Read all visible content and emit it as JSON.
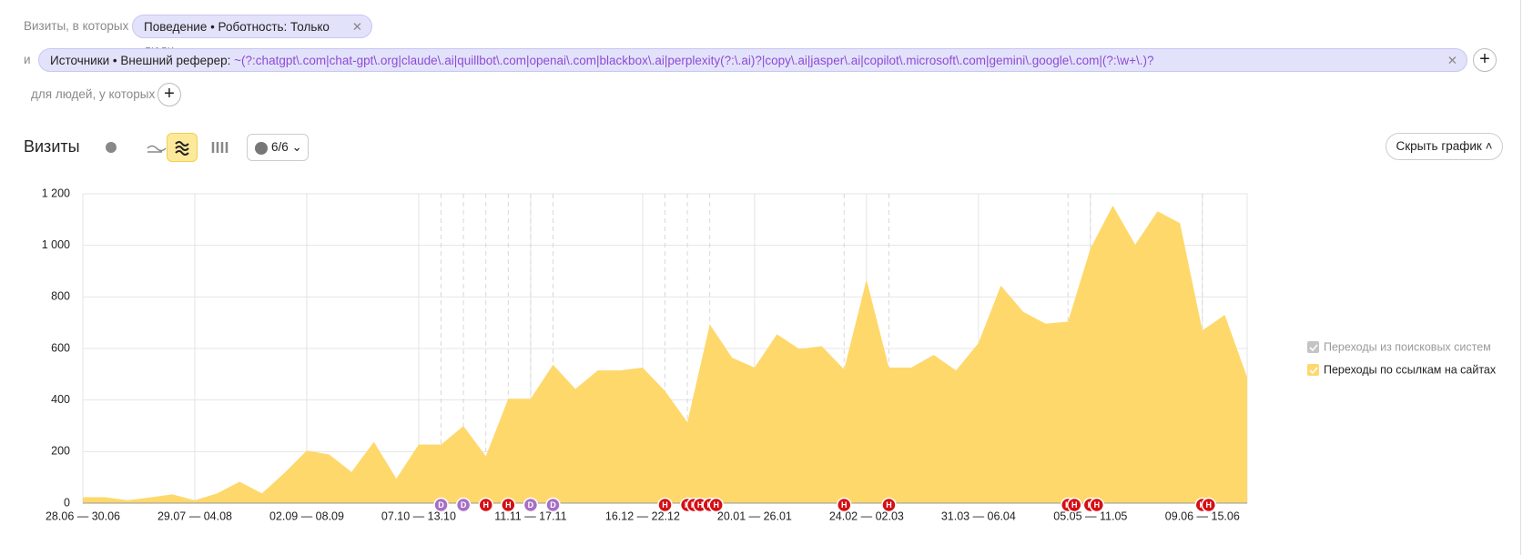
{
  "ui": {
    "filter_prefix": "Визиты, в которых",
    "filter1": "Поведение • Роботность: Только люди",
    "and": "и",
    "filter2_label": "Источники • Внешний реферер:",
    "filter2_value": "~(?:chatgpt\\.com|chat-gpt\\.org|claude\\.ai|quillbot\\.com|openai\\.com|blackbox\\.ai|perplexity(?:\\.ai)?|copy\\.ai|jasper\\.ai|copilot\\.microsoft\\.com|gemini\\.google\\.com|(?:\\w+\\.)?mistral\\.ai|deepseek\\.com|edgepilot|edgeservices|ni…",
    "people_prefix": "для людей, у которых",
    "report_title": "Визиты",
    "notes_count": "6/6",
    "hide_chart": "Скрыть график"
  },
  "chart_data": {
    "type": "area",
    "categories": [
      "28.06 — 30.06",
      null,
      null,
      null,
      null,
      "29.07 — 04.08",
      null,
      null,
      null,
      null,
      "02.09 — 08.09",
      null,
      null,
      null,
      null,
      "07.10 — 13.10",
      null,
      null,
      null,
      null,
      "11.11 — 17.11",
      null,
      null,
      null,
      null,
      "16.12 — 22.12",
      null,
      null,
      null,
      null,
      "20.01 — 26.01",
      null,
      null,
      null,
      null,
      "24.02 — 02.03",
      null,
      null,
      null,
      null,
      "31.03 — 06.04",
      null,
      null,
      null,
      null,
      "05.05 — 11.05",
      null,
      null,
      null,
      null,
      "09.06 — 15.06",
      null,
      null
    ],
    "series": [
      {
        "name": "Переходы по ссылкам на сайтах",
        "color": "#fed86b",
        "values": [
          23,
          23,
          11,
          22,
          34,
          11,
          38,
          83,
          38,
          117,
          204,
          189,
          121,
          238,
          95,
          227,
          227,
          299,
          182,
          405,
          405,
          537,
          443,
          515,
          515,
          526,
          435,
          314,
          693,
          564,
          526,
          655,
          598,
          609,
          519,
          867,
          526,
          526,
          575,
          515,
          621,
          844,
          742,
          696,
          704,
          988,
          1154,
          1003,
          1132,
          1086,
          670,
          730,
          488
        ]
      }
    ],
    "inactive_series": [
      {
        "name": "Переходы из поисковых систем",
        "color": "#c4c4c4"
      }
    ],
    "ylim": [
      0,
      1200
    ],
    "yticks": [
      0,
      200,
      400,
      600,
      800,
      {
        "value": 1000,
        "label": "1 000"
      },
      {
        "value": 1200,
        "label": "1 200"
      }
    ],
    "grid": true,
    "annotations": [
      {
        "label": "D",
        "category": 16
      },
      {
        "label": "D",
        "category": 17
      },
      {
        "label": "H",
        "category": 18
      },
      {
        "label": "H",
        "category": 19
      },
      {
        "label": "D",
        "category": 20
      },
      {
        "label": "D",
        "category": 21
      },
      {
        "label": "H",
        "category": 26
      },
      {
        "label": "H",
        "category": 27
      },
      {
        "label": "H",
        "category": 27
      },
      {
        "label": "H",
        "category": 27
      },
      {
        "label": "H",
        "category": 28
      },
      {
        "label": "H",
        "category": 28
      },
      {
        "label": "H",
        "category": 34
      },
      {
        "label": "H",
        "category": 36
      },
      {
        "label": "H",
        "category": 44
      },
      {
        "label": "H",
        "category": 44
      },
      {
        "label": "H",
        "category": 45
      },
      {
        "label": "H",
        "category": 45
      },
      {
        "label": "H",
        "category": 50
      },
      {
        "label": "H",
        "category": 50
      }
    ]
  }
}
